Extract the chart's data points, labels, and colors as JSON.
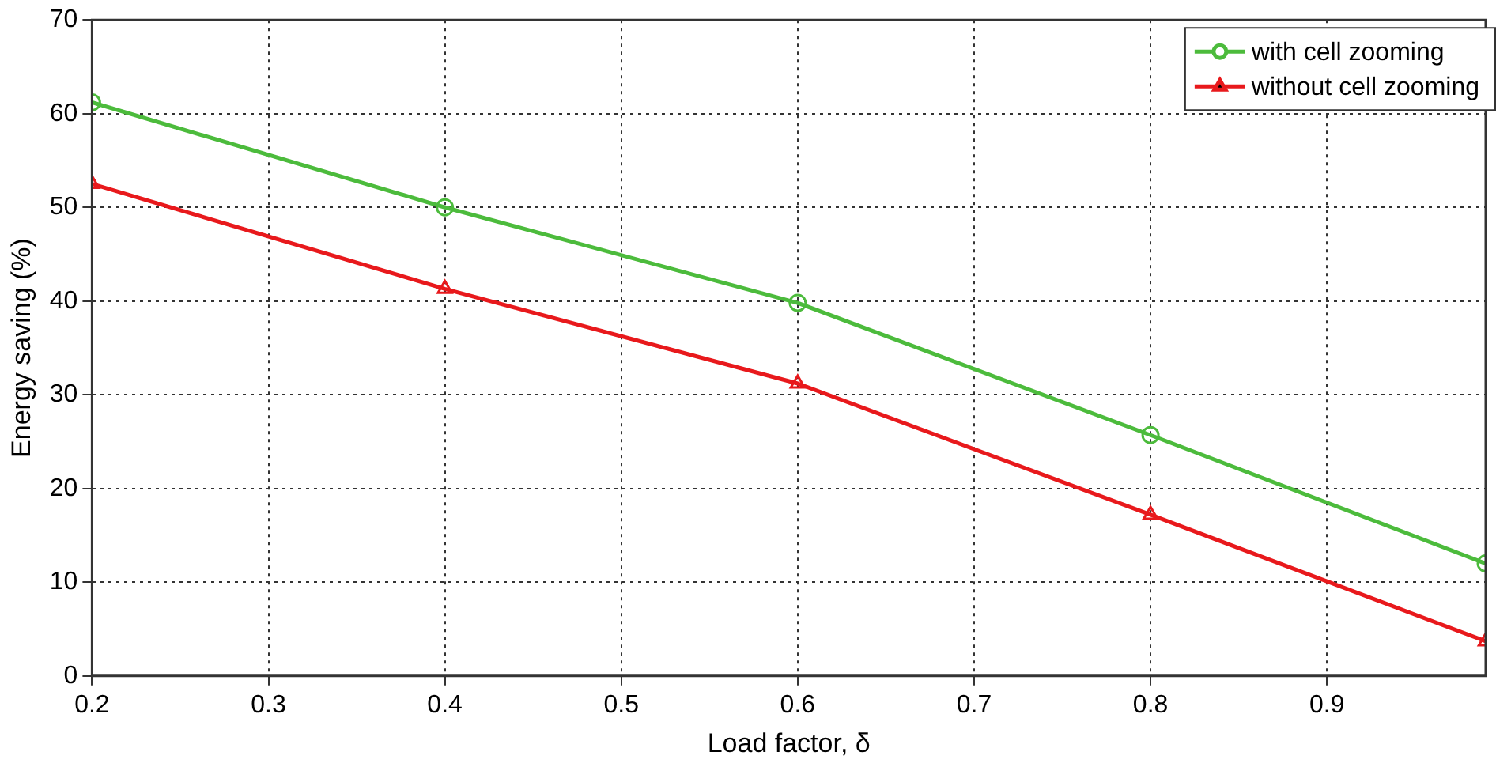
{
  "chart_data": {
    "type": "line",
    "xlabel": "Load factor, δ",
    "ylabel": "Energy saving (%)",
    "x": [
      0.2,
      0.4,
      0.6,
      0.8,
      0.99
    ],
    "series": [
      {
        "name": "with cell zooming",
        "color": "#4cbb3c",
        "marker": "circle",
        "values": [
          61.2,
          50,
          39.8,
          25.7,
          12
        ]
      },
      {
        "name": "without cell zooming",
        "color": "#e8191c",
        "marker": "triangle",
        "values": [
          52.5,
          41.3,
          31.2,
          17.2,
          3.7
        ]
      }
    ],
    "xlim": [
      0.2,
      0.99
    ],
    "xticks": [
      0.2,
      0.3,
      0.4,
      0.5,
      0.6,
      0.7,
      0.8,
      0.9
    ],
    "ylim": [
      0,
      70
    ],
    "yticks": [
      0,
      10,
      20,
      30,
      40,
      50,
      60,
      70
    ],
    "grid": true,
    "legend": "top right",
    "line_style": "solid"
  }
}
